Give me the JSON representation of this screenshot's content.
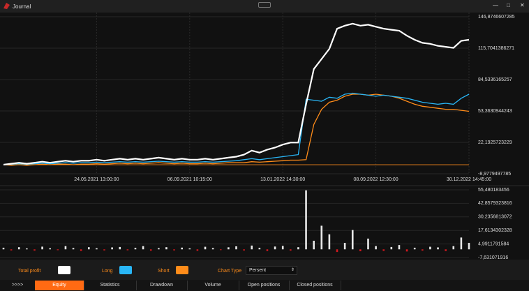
{
  "window": {
    "title": "Journal"
  },
  "chart_data": [
    {
      "type": "line",
      "categories": [
        null,
        null,
        null,
        null,
        null,
        null,
        null,
        null,
        null,
        null,
        null,
        null,
        "24.05.2021 13:00:00",
        null,
        null,
        null,
        null,
        null,
        null,
        null,
        null,
        null,
        null,
        null,
        "06.09.2021 10:15:00",
        null,
        null,
        null,
        null,
        null,
        null,
        null,
        null,
        null,
        null,
        null,
        "13.01.2022 14:30:00",
        null,
        null,
        null,
        null,
        null,
        null,
        null,
        null,
        null,
        null,
        null,
        "08.09.2022 12:30:00",
        null,
        null,
        null,
        null,
        null,
        null,
        null,
        null,
        null,
        null,
        null,
        "30.12.2022 14:45:00"
      ],
      "series": [
        {
          "name": "Total profit",
          "color": "#ffffff",
          "values": [
            0,
            1,
            2,
            1,
            2,
            3,
            2,
            3,
            4,
            3,
            4,
            4,
            5,
            4,
            5,
            6,
            5,
            6,
            5,
            6,
            7,
            6,
            5,
            6,
            5,
            5,
            6,
            5,
            6,
            7,
            8,
            10,
            14,
            12,
            15,
            17,
            20,
            22,
            22,
            60,
            95,
            105,
            115,
            135,
            138,
            140,
            138,
            139,
            137,
            135,
            134,
            133,
            128,
            124,
            121,
            120,
            118,
            117,
            116,
            123,
            124
          ]
        },
        {
          "name": "Long",
          "color": "#29b6f6",
          "values": [
            0,
            0.5,
            1,
            0.5,
            1,
            1.5,
            1,
            1.5,
            2,
            1.5,
            2,
            2,
            2.5,
            2,
            2.5,
            3,
            2.5,
            3,
            2.5,
            3,
            3.5,
            3,
            2.5,
            3,
            2.5,
            2.5,
            3,
            2.5,
            3,
            3.5,
            4,
            5,
            6,
            5,
            6,
            7,
            8,
            9,
            10,
            65,
            64,
            63,
            67,
            66,
            70,
            71,
            70,
            69,
            68,
            69,
            68,
            67,
            66,
            64,
            62,
            61,
            60,
            61,
            60,
            66,
            70
          ]
        },
        {
          "name": "Short",
          "color": "#ff8c1a",
          "values": [
            0,
            -0.5,
            0,
            -0.5,
            0,
            0.5,
            0,
            0.5,
            0.5,
            0,
            0.5,
            0.5,
            1,
            0.5,
            1,
            1.5,
            1,
            1.5,
            1,
            1.5,
            2,
            1.5,
            1,
            1.5,
            1,
            1,
            1.5,
            1,
            1.5,
            2,
            2,
            2,
            3,
            2.5,
            3,
            3.5,
            4,
            4.5,
            4.5,
            5,
            40,
            55,
            62,
            64,
            68,
            70,
            70,
            69,
            70,
            69,
            68,
            66,
            63,
            60,
            58,
            57,
            56,
            55,
            55,
            54,
            53
          ]
        }
      ],
      "ylim": [
        -8.9779497785,
        146.8746607285
      ],
      "yticks": [
        {
          "value": 146.8746607285,
          "label": "146,8746607285"
        },
        {
          "value": 115.7041386271,
          "label": "115,7041386271"
        },
        {
          "value": 84.5336165257,
          "label": "84,5336165257"
        },
        {
          "value": 53.3630944243,
          "label": "53,3630944243"
        },
        {
          "value": 22.1925723229,
          "label": "22,1925723229"
        },
        {
          "value": -8.9779497785,
          "label": "-8,9779497785"
        }
      ],
      "grid": true
    },
    {
      "type": "bar",
      "values": [
        1.5,
        -1,
        2,
        0.8,
        -1.2,
        2.5,
        1,
        -0.8,
        3,
        1.2,
        -1.5,
        2,
        1,
        -1,
        1.8,
        2.2,
        -0.9,
        1.4,
        3,
        -1.3,
        1.1,
        2,
        -1,
        1.6,
        0.9,
        -1.4,
        2.4,
        1.2,
        -0.7,
        1.9,
        2.8,
        -1.1,
        3.5,
        1.4,
        -1.6,
        2.6,
        3.2,
        -1.2,
        2,
        55,
        8,
        22,
        14,
        -2.5,
        6,
        18,
        -1.8,
        10,
        3,
        -1.5,
        2.2,
        4,
        -2,
        1.5,
        -1.2,
        2.4,
        1.8,
        -1.6,
        3,
        11,
        6
      ],
      "color": "#e8e8e8",
      "negative_color": "#d0191f",
      "ylim": [
        -7.631071916,
        55.480183456
      ],
      "yticks": [
        {
          "value": 55.480183456,
          "label": "55,480183456"
        },
        {
          "value": 42.8579323816,
          "label": "42,8579323816"
        },
        {
          "value": 30.2356813072,
          "label": "30,2356813072"
        },
        {
          "value": 17.6134302328,
          "label": "17,6134302328"
        },
        {
          "value": 4.9911791584,
          "label": "4,9911791584"
        },
        {
          "value": -7.631071916,
          "label": "-7,631071916"
        }
      ],
      "grid": true
    }
  ],
  "controls": {
    "chart_type_label": "Chart Type",
    "chart_type_value": "Persent"
  },
  "tabs": [
    ">>>>",
    "Equity",
    "Statistics",
    "Drawdown",
    "Volume",
    "Open positions",
    "Closed positions"
  ]
}
